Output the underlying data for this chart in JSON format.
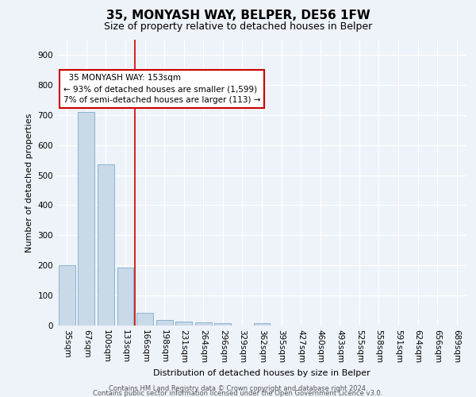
{
  "title": "35, MONYASH WAY, BELPER, DE56 1FW",
  "subtitle": "Size of property relative to detached houses in Belper",
  "xlabel": "Distribution of detached houses by size in Belper",
  "ylabel": "Number of detached properties",
  "bin_labels": [
    "35sqm",
    "67sqm",
    "100sqm",
    "133sqm",
    "166sqm",
    "198sqm",
    "231sqm",
    "264sqm",
    "296sqm",
    "329sqm",
    "362sqm",
    "395sqm",
    "427sqm",
    "460sqm",
    "493sqm",
    "525sqm",
    "558sqm",
    "591sqm",
    "624sqm",
    "656sqm",
    "689sqm"
  ],
  "bar_heights": [
    201,
    710,
    535,
    193,
    42,
    18,
    14,
    10,
    8,
    0,
    7,
    0,
    0,
    0,
    0,
    0,
    0,
    0,
    0,
    0,
    0
  ],
  "bar_color": "#c9d9e8",
  "bar_edgecolor": "#7aaecb",
  "redline_x": 3.5,
  "annotation_text": "  35 MONYASH WAY: 153sqm\n← 93% of detached houses are smaller (1,599)\n7% of semi-detached houses are larger (113) →",
  "annotation_box_color": "#ffffff",
  "annotation_box_edgecolor": "#cc0000",
  "redline_color": "#cc0000",
  "ylim": [
    0,
    950
  ],
  "yticks": [
    0,
    100,
    200,
    300,
    400,
    500,
    600,
    700,
    800,
    900
  ],
  "footer_line1": "Contains HM Land Registry data © Crown copyright and database right 2024.",
  "footer_line2": "Contains public sector information licensed under the Open Government Licence v3.0.",
  "background_color": "#eef2f9",
  "grid_color": "#ffffff",
  "title_fontsize": 11,
  "subtitle_fontsize": 9,
  "ylabel_fontsize": 8,
  "xlabel_fontsize": 8,
  "tick_fontsize": 7.5,
  "annotation_fontsize": 7.5,
  "footer_fontsize": 6
}
